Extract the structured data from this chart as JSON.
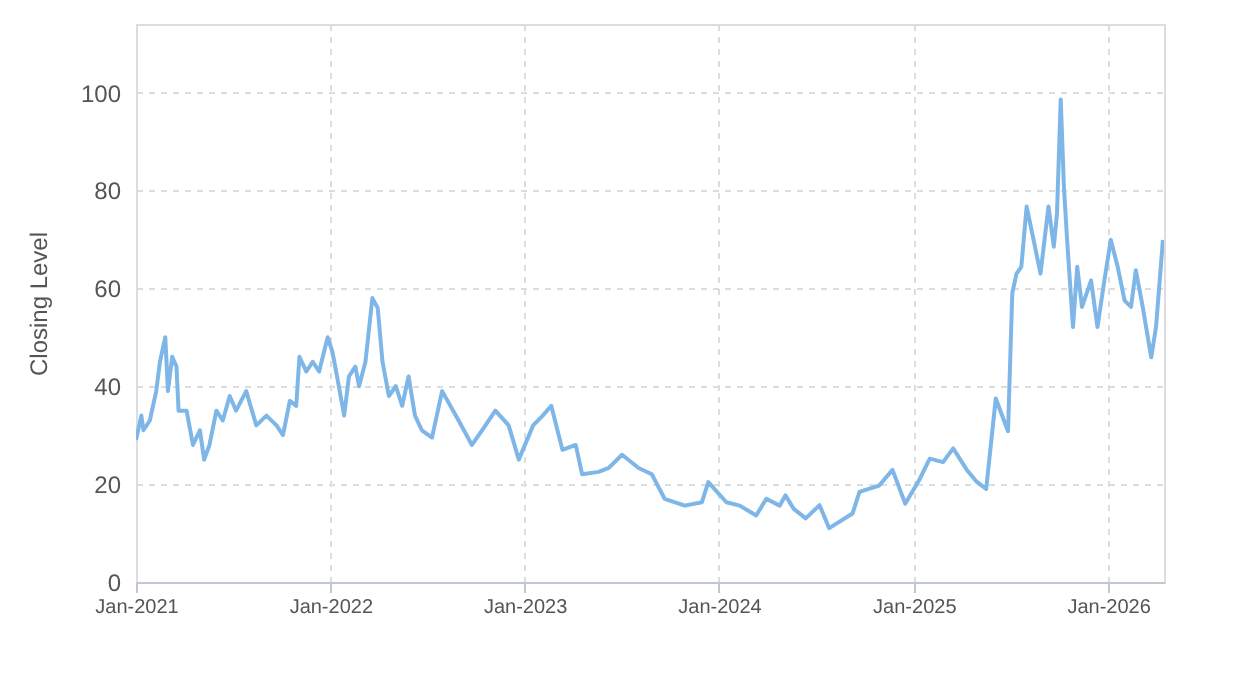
{
  "chart_data": {
    "type": "line",
    "ylabel": "Closing Level",
    "xlim": [
      "2021-01-01",
      "2026-04-16"
    ],
    "xticks": [
      {
        "value": "2021-01-01",
        "label": "Jan-2021"
      },
      {
        "value": "2022-01-01",
        "label": "Jan-2022"
      },
      {
        "value": "2023-01-01",
        "label": "Jan-2023"
      },
      {
        "value": "2024-01-01",
        "label": "Jan-2024"
      },
      {
        "value": "2025-01-01",
        "label": "Jan-2025"
      },
      {
        "value": "2026-01-01",
        "label": "Jan-2026"
      }
    ],
    "ylim": [
      0,
      114
    ],
    "yticks": [
      0,
      20,
      40,
      60,
      80,
      100
    ],
    "grid": true,
    "marker": "none",
    "line_style": "solid",
    "x": [
      "2021-01-01",
      "2021-01-11",
      "2021-01-15",
      "2021-01-27",
      "2021-02-08",
      "2021-02-15",
      "2021-02-25",
      "2021-03-02",
      "2021-03-10",
      "2021-03-18",
      "2021-03-22",
      "2021-04-06",
      "2021-04-18",
      "2021-05-01",
      "2021-05-09",
      "2021-05-19",
      "2021-06-01",
      "2021-06-13",
      "2021-06-26",
      "2021-07-08",
      "2021-07-27",
      "2021-08-15",
      "2021-09-03",
      "2021-09-22",
      "2021-10-04",
      "2021-10-17",
      "2021-10-29",
      "2021-11-04",
      "2021-11-17",
      "2021-11-29",
      "2021-12-11",
      "2021-12-27",
      "2022-01-05",
      "2022-01-17",
      "2022-01-27",
      "2022-02-05",
      "2022-02-17",
      "2022-02-24",
      "2022-03-08",
      "2022-03-21",
      "2022-03-31",
      "2022-04-09",
      "2022-04-21",
      "2022-05-04",
      "2022-05-16",
      "2022-05-28",
      "2022-06-09",
      "2022-06-22",
      "2022-07-11",
      "2022-07-30",
      "2022-08-30",
      "2022-09-24",
      "2022-10-13",
      "2022-11-07",
      "2022-12-02",
      "2022-12-21",
      "2023-01-17",
      "2023-02-04",
      "2023-02-20",
      "2023-03-13",
      "2023-04-07",
      "2023-04-19",
      "2023-05-20",
      "2023-06-08",
      "2023-07-03",
      "2023-08-03",
      "2023-08-28",
      "2023-09-21",
      "2023-10-29",
      "2023-11-30",
      "2023-12-12",
      "2024-01-15",
      "2024-02-09",
      "2024-03-11",
      "2024-03-30",
      "2024-04-24",
      "2024-05-05",
      "2024-05-20",
      "2024-06-12",
      "2024-07-08",
      "2024-07-26",
      "2024-09-08",
      "2024-09-21",
      "2024-10-28",
      "2024-11-22",
      "2024-12-16",
      "2025-01-12",
      "2025-01-31",
      "2025-02-25",
      "2025-03-16",
      "2025-04-10",
      "2025-04-29",
      "2025-05-17",
      "2025-06-04",
      "2025-06-27",
      "2025-07-05",
      "2025-07-13",
      "2025-07-22",
      "2025-08-01",
      "2025-08-14",
      "2025-08-27",
      "2025-09-11",
      "2025-09-21",
      "2025-09-27",
      "2025-10-04",
      "2025-10-10",
      "2025-10-16",
      "2025-10-27",
      "2025-11-04",
      "2025-11-13",
      "2025-11-30",
      "2025-12-12",
      "2025-12-25",
      "2026-01-06",
      "2026-01-19",
      "2026-02-01",
      "2026-02-13",
      "2026-02-22",
      "2026-03-07",
      "2026-03-23",
      "2026-04-01",
      "2026-04-14"
    ],
    "series": [
      {
        "color": "#7eb6e8",
        "values": [
          29,
          34,
          31,
          33,
          39,
          45,
          50,
          39,
          46,
          44,
          35,
          35,
          28,
          31,
          25,
          28,
          35,
          33,
          38,
          35,
          39,
          32,
          34,
          32,
          30,
          37,
          36,
          46,
          43,
          45,
          43,
          50,
          47,
          40,
          34,
          42,
          44,
          40,
          45,
          58,
          56,
          45,
          38,
          40,
          36,
          42,
          34,
          31,
          29.5,
          39,
          33,
          28,
          31,
          35,
          32,
          25,
          32,
          34,
          36,
          27,
          28,
          22,
          22.5,
          23.3,
          26,
          23.3,
          22,
          17,
          15.6,
          16.3,
          20.4,
          16.3,
          15.6,
          13.6,
          17,
          15.6,
          17.7,
          15,
          13,
          15.7,
          11,
          14,
          18.4,
          19.7,
          22.9,
          16,
          21,
          25.2,
          24.5,
          27.3,
          23,
          20.5,
          19,
          37.5,
          30.8,
          59,
          63,
          64.4,
          76.7,
          69.9,
          63,
          76.7,
          68.5,
          75.3,
          98.6,
          80.8,
          69.9,
          52.1,
          64.4,
          56.2,
          61.6,
          52.1,
          61.6,
          69.9,
          64.4,
          57.5,
          56.2,
          63.7,
          56.2,
          45.9,
          52.1,
          69.9
        ]
      }
    ]
  }
}
